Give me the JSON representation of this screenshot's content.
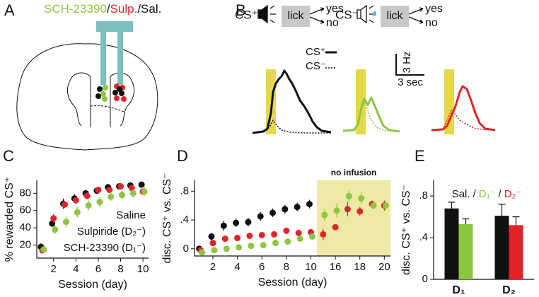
{
  "panel_letters": [
    "A",
    "B",
    "C",
    "D",
    "E"
  ],
  "panel_a": {
    "labels": [
      "SCH-23390",
      "/",
      "Sulp.",
      "/Sal."
    ],
    "colors": [
      "#8dc63f",
      "#111111",
      "#e0252a",
      "#111111"
    ]
  },
  "panel_b": {
    "cs_plus": "CS⁺",
    "cs_minus": "CS⁻",
    "lick": "lick",
    "yes": "yes",
    "no": "no",
    "legend": [
      "CS⁺",
      "CS⁻"
    ],
    "scale_y": "3 Hz",
    "scale_x": "3 sec"
  },
  "chart_data": [
    {
      "type": "scatter",
      "xlabel": "Session (day)",
      "ylabel": "% rewarded CS⁺",
      "x": [
        1,
        2,
        3,
        4,
        5,
        6,
        7,
        8,
        9,
        10
      ],
      "xlim": [
        0.5,
        10.5
      ],
      "xticks": [
        2,
        4,
        6,
        8,
        10
      ],
      "ylim": [
        5,
        95
      ],
      "yticks": [
        20,
        40,
        60,
        80
      ],
      "legend": "lower right",
      "series": [
        {
          "name": "Saline",
          "color": "#111111",
          "values": [
            18,
            45,
            68,
            74,
            80,
            83,
            87,
            88,
            89,
            90
          ],
          "errors": [
            4,
            4,
            6,
            5,
            3,
            3,
            2,
            2,
            2,
            2
          ]
        },
        {
          "name": "Sulpiride (D₂⁻)",
          "color": "#e0252a",
          "values": [
            14,
            51,
            67,
            72,
            77,
            84,
            84,
            88,
            86,
            82
          ],
          "errors": [
            3,
            5,
            4,
            4,
            4,
            3,
            3,
            2,
            3,
            3
          ]
        },
        {
          "name": "SCH-23390 (D₁⁻)",
          "color": "#8dc63f",
          "values": [
            15,
            38,
            47,
            58,
            66,
            70,
            76,
            78,
            80,
            82
          ],
          "errors": [
            3,
            5,
            6,
            6,
            6,
            6,
            5,
            5,
            5,
            5
          ]
        }
      ]
    },
    {
      "type": "scatter",
      "xlabel": "Session (day)",
      "ylabel": "disc. CS⁺ vs. CS⁻",
      "annotation": "no infusion",
      "categories": [
        null,
        "2",
        null,
        "4",
        null,
        "6",
        null,
        "8",
        null,
        "10",
        null,
        "16",
        null,
        "18",
        null,
        "20"
      ],
      "ylim": [
        -0.1,
        0.95
      ],
      "yticks": [
        0,
        {
          "value": 0.4,
          "label": ".4"
        },
        {
          "value": 0.8,
          "label": ".8"
        }
      ],
      "series": [
        {
          "name": "Saline",
          "color": "#111111",
          "values": [
            0.0,
            0.17,
            0.32,
            0.36,
            0.37,
            0.45,
            0.5,
            0.55,
            0.58,
            0.62,
            null,
            null,
            null,
            null,
            null,
            null
          ],
          "errors": [
            0.04,
            0.05,
            0.07,
            0.06,
            0.06,
            0.06,
            0.06,
            0.06,
            0.06,
            0.06,
            null,
            null,
            null,
            null,
            null,
            null
          ]
        },
        {
          "name": "Sulpiride (D₂⁻)",
          "color": "#e0252a",
          "values": [
            -0.02,
            0.08,
            0.14,
            0.15,
            0.18,
            0.19,
            0.2,
            0.25,
            0.22,
            0.23,
            0.2,
            0.3,
            0.55,
            0.52,
            0.62,
            0.6
          ],
          "errors": [
            0.03,
            0.04,
            0.04,
            0.04,
            0.04,
            0.04,
            0.04,
            0.04,
            0.04,
            0.04,
            0.08,
            0.04,
            0.1,
            0.06,
            0.05,
            0.07
          ]
        },
        {
          "name": "SCH-23390 (D₁⁻)",
          "color": "#8dc63f",
          "values": [
            -0.05,
            -0.02,
            0.0,
            0.02,
            0.04,
            0.05,
            0.08,
            0.1,
            0.14,
            0.17,
            0.47,
            0.53,
            0.73,
            0.7,
            0.6,
            0.6
          ],
          "errors": [
            0.03,
            0.03,
            0.03,
            0.03,
            0.03,
            0.03,
            0.03,
            0.03,
            0.03,
            0.03,
            0.08,
            0.1,
            0.08,
            0.08,
            0.05,
            0.07
          ]
        }
      ]
    },
    {
      "type": "bar",
      "ylabel": "disc. CS⁺ vs. CS⁻",
      "legend_separator": "/",
      "categories": [
        "D₁",
        "D₂"
      ],
      "ylim": [
        0,
        0.95
      ],
      "yticks": [
        0,
        {
          "value": 0.4,
          "label": ".4"
        },
        {
          "value": 0.8,
          "label": ".8"
        }
      ],
      "series": [
        {
          "name": "Sal.",
          "color": "#111111",
          "values": [
            0.68,
            0.61
          ],
          "errors": [
            0.06,
            0.11
          ]
        },
        {
          "name": "D₁⁻",
          "color": "#8dc63f",
          "values": [
            0.53,
            null
          ],
          "errors": [
            0.05,
            null
          ]
        },
        {
          "name": "D₂⁻",
          "color": "#e0252a",
          "values": [
            null,
            0.52
          ],
          "errors": [
            null,
            0.08
          ]
        }
      ]
    }
  ]
}
